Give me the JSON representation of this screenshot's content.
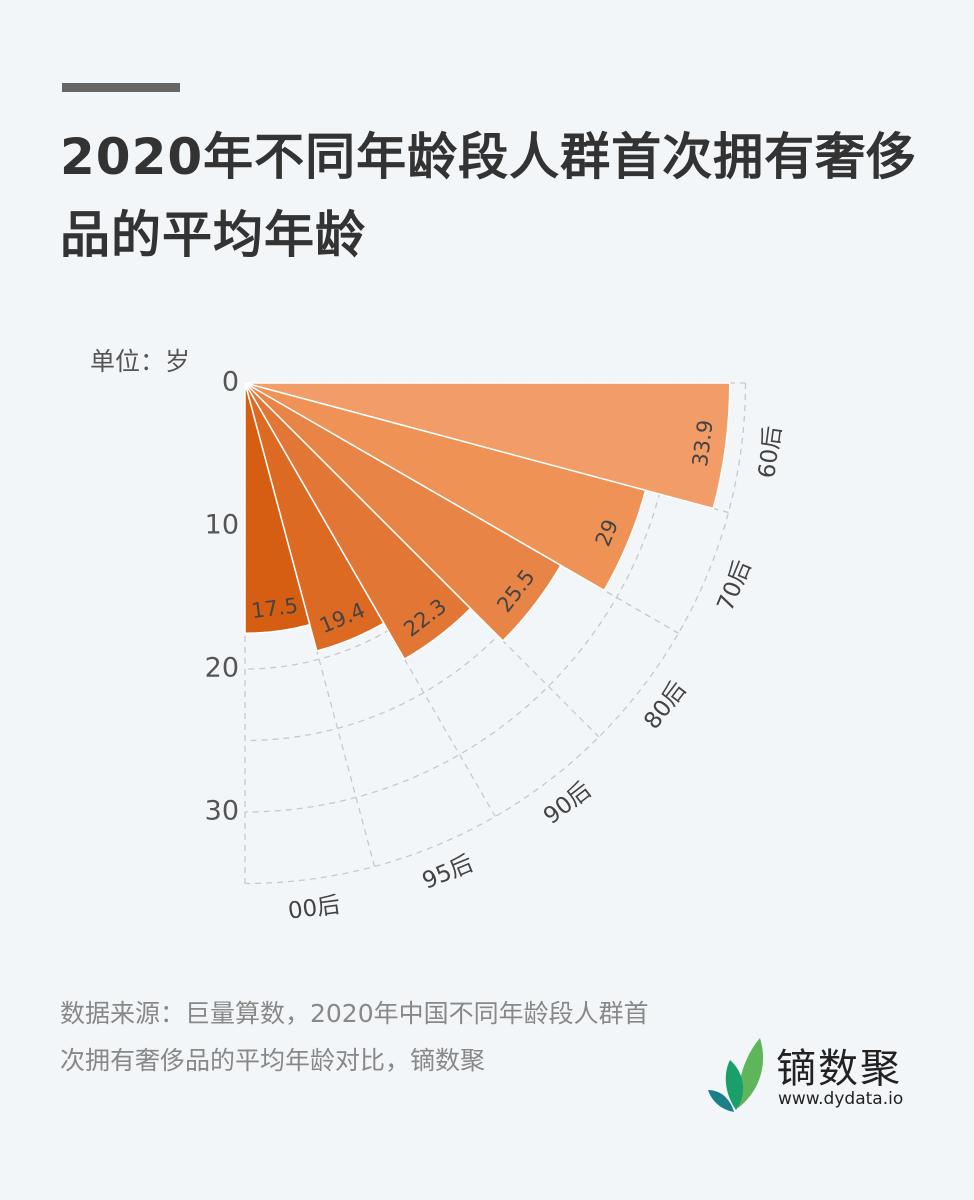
{
  "header": {
    "title": "2020年不同年龄段人群首次拥有奢侈品的平均年龄"
  },
  "unit_label": "单位：岁",
  "footer": {
    "source": "数据来源：巨量算数，2020年中国不同年龄段人群首次拥有奢侈品的平均年龄对比，镝数聚",
    "logo_name": "镝数聚",
    "logo_url": "www.dydata.io"
  },
  "colors": {
    "background": "#f3f6f9",
    "sectors": [
      "#f29d68",
      "#ee9255",
      "#e88445",
      "#e27634",
      "#dc6a23",
      "#d55e12"
    ],
    "grid": "#c8c8c8",
    "text": "#555555"
  },
  "chart_data": {
    "type": "polar-bar",
    "title": "2020年不同年龄段人群首次拥有奢侈品的平均年龄",
    "unit": "岁",
    "categories": [
      "60后",
      "70后",
      "80后",
      "90后",
      "95后",
      "00后"
    ],
    "values": [
      33.9,
      29,
      25.5,
      22.3,
      19.4,
      17.5
    ],
    "value_labels": [
      "33.9",
      "29",
      "25.5",
      "22.3",
      "19.4",
      "17.5"
    ],
    "radial_ticks": [
      "0",
      "10",
      "20",
      "30"
    ],
    "radial_range": [
      0,
      35
    ],
    "angle_range_deg": [
      0,
      90
    ],
    "grid": true
  }
}
